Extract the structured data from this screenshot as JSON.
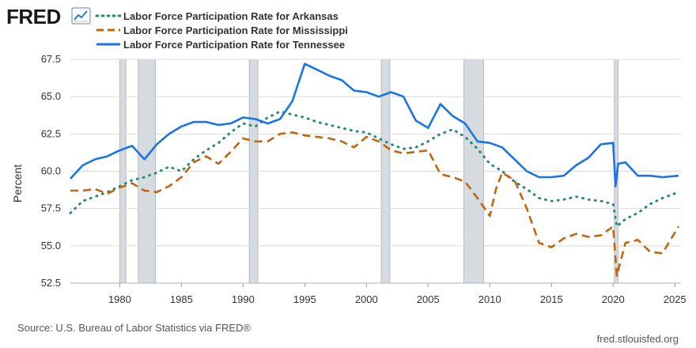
{
  "brand": {
    "logo_text": "FRED",
    "logo_icon": "line-chart-icon"
  },
  "footer": {
    "source": "Source: U.S. Bureau of Labor Statistics via FRED®",
    "site": "fred.stlouisfed.org"
  },
  "colors": {
    "arkansas": "#2a8a7a",
    "mississippi": "#c0660f",
    "tennessee": "#1a73e8",
    "recession": "#d6dbe0",
    "grid": "#d9d9d9",
    "plot_bg": "#ffffff"
  },
  "chart_data": {
    "type": "line",
    "title": "",
    "xlabel": "",
    "ylabel": "Percent",
    "xlim": [
      1976,
      2025.5
    ],
    "ylim": [
      52.5,
      67.5
    ],
    "x_ticks": [
      "1980",
      "1985",
      "1990",
      "1995",
      "2000",
      "2005",
      "2010",
      "2015",
      "2020",
      "2025"
    ],
    "y_ticks": [
      "52.5",
      "55.0",
      "57.5",
      "60.0",
      "62.5",
      "65.0",
      "67.5"
    ],
    "grid": true,
    "legend_position": "top-left",
    "recessions": [
      [
        1980.0,
        1980.5
      ],
      [
        1981.5,
        1982.9
      ],
      [
        1990.5,
        1991.2
      ],
      [
        2001.2,
        2001.9
      ],
      [
        2007.9,
        2009.5
      ],
      [
        2020.1,
        2020.4
      ]
    ],
    "series": [
      {
        "name": "Labor Force Participation Rate for Arkansas",
        "style": "dotted",
        "x": [
          1976,
          1977,
          1978,
          1979,
          1980,
          1981,
          1982,
          1983,
          1984,
          1985,
          1986,
          1987,
          1988,
          1989,
          1990,
          1991,
          1992,
          1993,
          1994,
          1995,
          1996,
          1997,
          1998,
          1999,
          2000,
          2001,
          2002,
          2003,
          2004,
          2005,
          2006,
          2007,
          2008,
          2009,
          2010,
          2011,
          2012,
          2013,
          2014,
          2015,
          2016,
          2017,
          2018,
          2019,
          2020,
          2020.3,
          2021,
          2022,
          2023,
          2024,
          2025.3
        ],
        "y": [
          57.2,
          58.0,
          58.3,
          58.6,
          59.0,
          59.4,
          59.6,
          59.9,
          60.3,
          60.0,
          60.8,
          61.4,
          61.9,
          62.6,
          63.2,
          63.0,
          63.6,
          64.0,
          63.8,
          63.6,
          63.3,
          63.1,
          62.9,
          62.7,
          62.6,
          62.2,
          61.8,
          61.5,
          61.6,
          62.0,
          62.5,
          62.8,
          62.3,
          61.5,
          60.5,
          60.0,
          59.3,
          58.8,
          58.2,
          58.0,
          58.1,
          58.3,
          58.1,
          58.0,
          57.8,
          56.3,
          56.8,
          57.2,
          57.8,
          58.2,
          58.6
        ]
      },
      {
        "name": "Labor Force Participation Rate for Mississippi",
        "style": "dashed",
        "x": [
          1976,
          1977,
          1978,
          1979,
          1980,
          1981,
          1982,
          1983,
          1984,
          1985,
          1986,
          1987,
          1988,
          1989,
          1990,
          1991,
          1992,
          1993,
          1994,
          1995,
          1996,
          1997,
          1998,
          1999,
          2000,
          2001,
          2002,
          2003,
          2004,
          2005,
          2006,
          2007,
          2008,
          2009,
          2010,
          2010.5,
          2011,
          2012,
          2013,
          2014,
          2015,
          2016,
          2017,
          2018,
          2019,
          2020,
          2020.3,
          2021,
          2022,
          2023,
          2024,
          2025.3
        ],
        "y": [
          58.7,
          58.7,
          58.8,
          58.5,
          58.9,
          59.2,
          58.7,
          58.6,
          59.0,
          59.6,
          60.6,
          61.0,
          60.5,
          61.3,
          62.2,
          62.0,
          62.0,
          62.5,
          62.6,
          62.4,
          62.3,
          62.2,
          62.0,
          61.6,
          62.3,
          62.0,
          61.4,
          61.2,
          61.3,
          61.4,
          59.8,
          59.6,
          59.3,
          58.2,
          57.0,
          58.8,
          59.9,
          59.4,
          57.5,
          55.2,
          54.9,
          55.5,
          55.8,
          55.6,
          55.7,
          56.3,
          53.0,
          55.2,
          55.4,
          54.6,
          54.5,
          56.3
        ]
      },
      {
        "name": "Labor Force Participation Rate for Tennessee",
        "style": "solid",
        "x": [
          1976,
          1977,
          1978,
          1979,
          1980,
          1981,
          1982,
          1983,
          1984,
          1985,
          1986,
          1987,
          1988,
          1989,
          1990,
          1991,
          1992,
          1993,
          1994,
          1995,
          1996,
          1997,
          1998,
          1999,
          2000,
          2001,
          2002,
          2003,
          2004,
          2005,
          2006,
          2007,
          2008,
          2009,
          2010,
          2011,
          2012,
          2013,
          2014,
          2015,
          2016,
          2017,
          2018,
          2019,
          2020,
          2020.2,
          2020.4,
          2021,
          2022,
          2023,
          2024,
          2025.3
        ],
        "y": [
          59.5,
          60.4,
          60.8,
          61.0,
          61.4,
          61.7,
          60.8,
          61.8,
          62.5,
          63.0,
          63.3,
          63.3,
          63.1,
          63.2,
          63.6,
          63.5,
          63.2,
          63.5,
          64.7,
          67.2,
          66.8,
          66.4,
          66.1,
          65.4,
          65.3,
          65.0,
          65.3,
          65.0,
          63.4,
          62.9,
          64.5,
          63.7,
          63.2,
          62.0,
          61.9,
          61.6,
          60.8,
          60.0,
          59.6,
          59.6,
          59.7,
          60.4,
          60.9,
          61.8,
          61.9,
          59.0,
          60.5,
          60.6,
          59.7,
          59.7,
          59.6,
          59.7
        ]
      }
    ]
  }
}
